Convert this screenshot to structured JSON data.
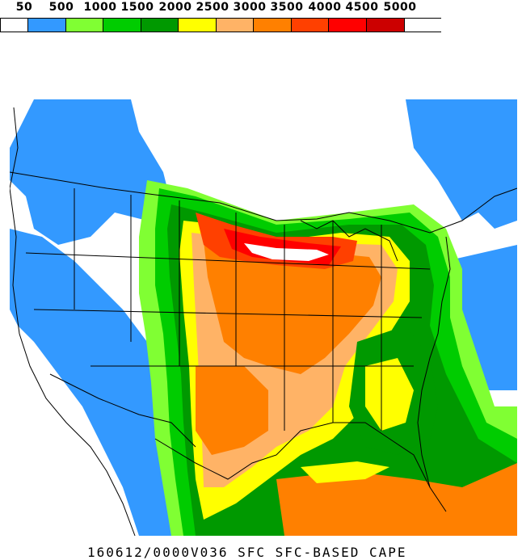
{
  "legend": {
    "labels": [
      "50",
      "500",
      "1000",
      "1500",
      "2000",
      "2500",
      "3000",
      "3500",
      "4000",
      "4500",
      "5000"
    ],
    "colors": [
      "#ffffff",
      "#3399ff",
      "#80ff33",
      "#00cc00",
      "#009900",
      "#ffff00",
      "#ffb366",
      "#ff8000",
      "#ff4000",
      "#ff0000",
      "#cc0000",
      "#ffffff"
    ]
  },
  "caption": "160612/0000V036 SFC  SFC-BASED CAPE",
  "map": {
    "background": "#ffffff",
    "boundary_color": "#000000"
  }
}
